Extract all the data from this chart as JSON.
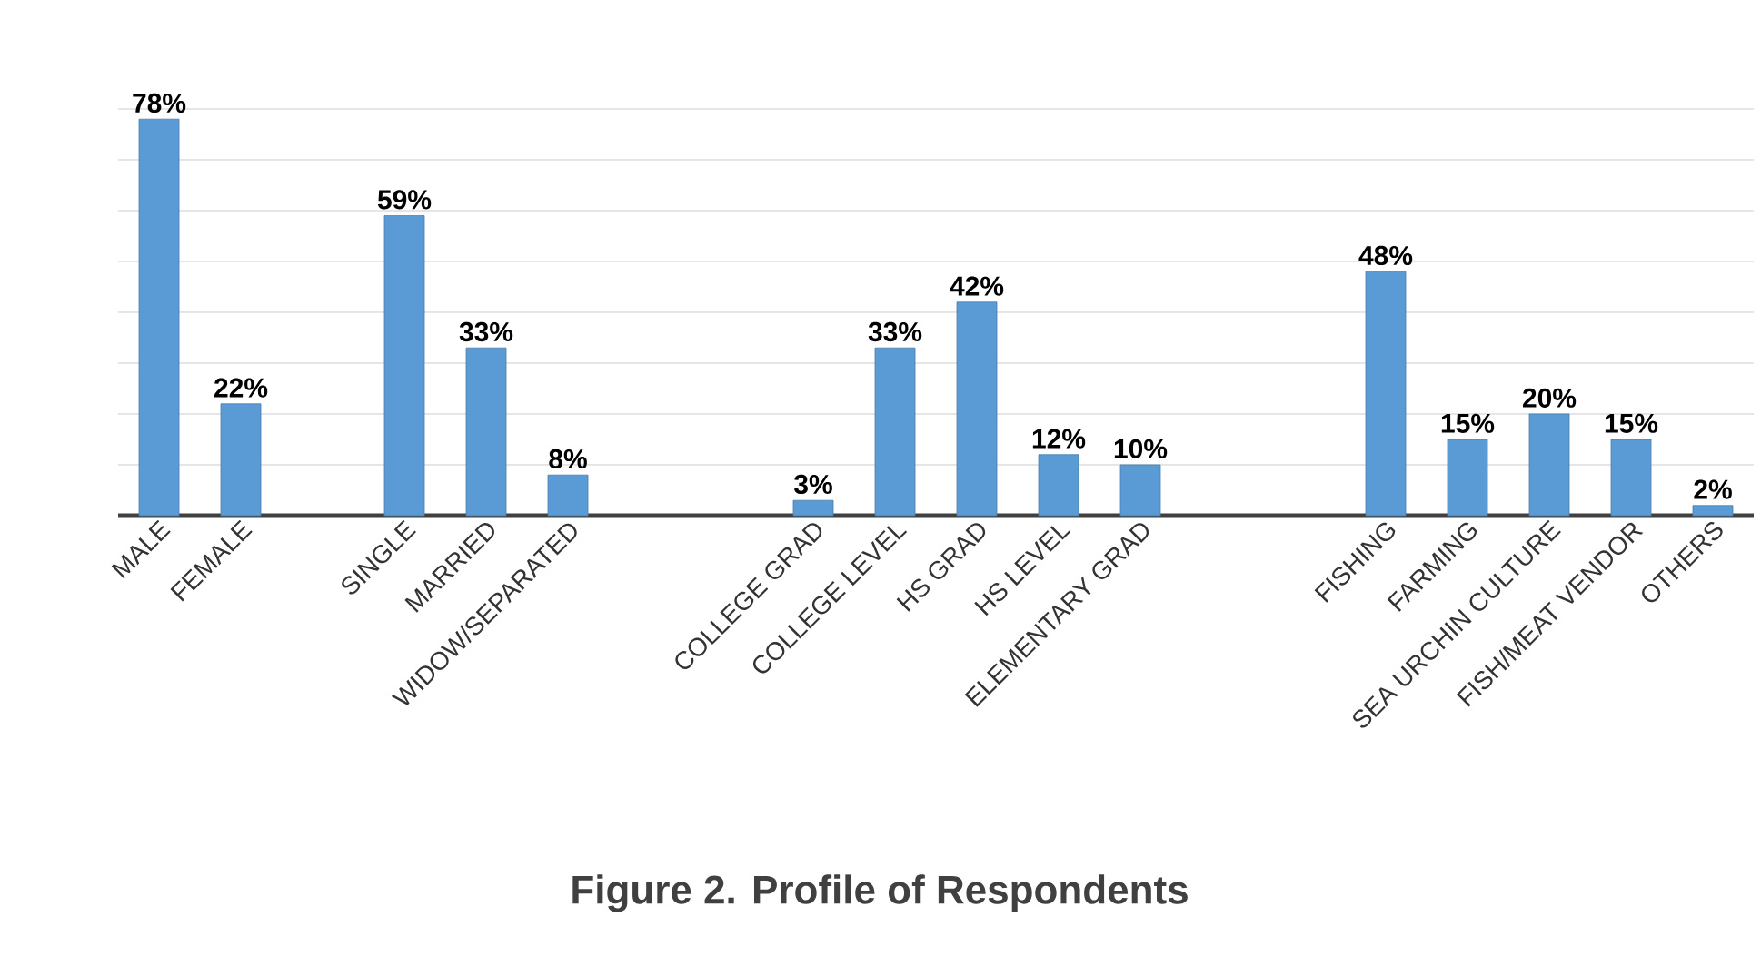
{
  "chart_data": {
    "type": "bar",
    "title": "Figure 2. Profile of Respondents",
    "categories": [
      "MALE",
      "FEMALE",
      null,
      "SINGLE",
      "MARRIED",
      "WIDOW/SEPARATED",
      null,
      null,
      "COLLEGE GRAD",
      "COLLEGE LEVEL",
      "HS GRAD",
      "HS LEVEL",
      "ELEMENTARY GRAD",
      null,
      null,
      "FISHING",
      "FARMING",
      "SEA URCHIN CULTURE",
      "FISH/MEAT VENDOR",
      "OTHERS"
    ],
    "values": [
      78,
      22,
      null,
      59,
      33,
      8,
      null,
      null,
      3,
      33,
      42,
      12,
      10,
      null,
      null,
      48,
      15,
      20,
      15,
      2
    ],
    "value_labels": [
      "78%",
      "22%",
      null,
      "59%",
      "33%",
      "8%",
      null,
      null,
      "3%",
      "33%",
      "42%",
      "12%",
      "10%",
      null,
      null,
      "48%",
      "15%",
      "20%",
      "15%",
      "2%"
    ],
    "color": "#5b9bd5",
    "ylim": [
      0,
      80
    ],
    "yticks": [
      {
        "value": 10,
        "label": null
      },
      {
        "value": 20,
        "label": null
      },
      {
        "value": 30,
        "label": null
      },
      {
        "value": 40,
        "label": null
      },
      {
        "value": 50,
        "label": null
      },
      {
        "value": 60,
        "label": null
      },
      {
        "value": 70,
        "label": null
      },
      {
        "value": 80,
        "label": null
      }
    ],
    "grid": "y",
    "tick_labels": "x"
  }
}
